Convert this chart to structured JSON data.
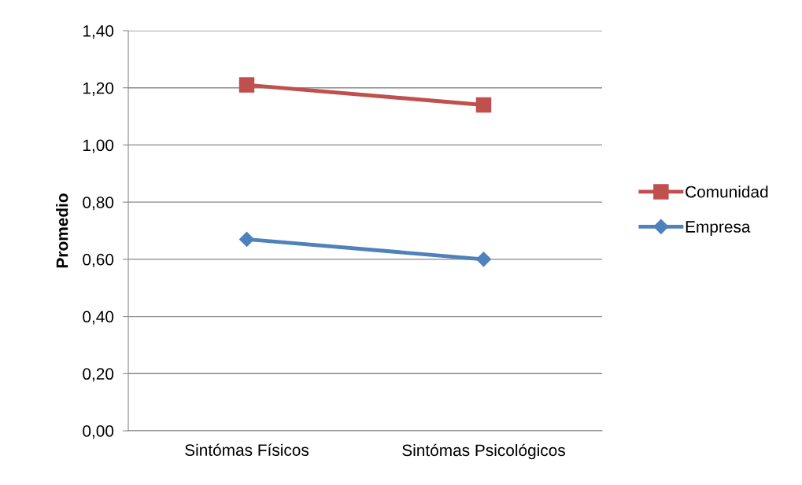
{
  "chart_data": {
    "type": "line",
    "ylabel": "Promedio",
    "categories": [
      "Sintómas Físicos",
      "Sintómas Psicológicos"
    ],
    "series": [
      {
        "name": "Comunidad",
        "color": "#c0504d",
        "marker": "square",
        "values": [
          1.21,
          1.14
        ]
      },
      {
        "name": "Empresa",
        "color": "#4f81bd",
        "marker": "diamond",
        "values": [
          0.67,
          0.6
        ]
      }
    ],
    "ylim": [
      0,
      1.4
    ],
    "yticks": [
      {
        "value": 0,
        "label": "0,00"
      },
      {
        "value": 0.2,
        "label": "0,20"
      },
      {
        "value": 0.4,
        "label": "0,40"
      },
      {
        "value": 0.6,
        "label": "0,60"
      },
      {
        "value": 0.8,
        "label": "0,80"
      },
      {
        "value": 1.0,
        "label": "1,00"
      },
      {
        "value": 1.2,
        "label": "1,20"
      },
      {
        "value": 1.4,
        "label": "1,40"
      }
    ],
    "grid": "y",
    "legend": "right",
    "line_style": "solid"
  }
}
